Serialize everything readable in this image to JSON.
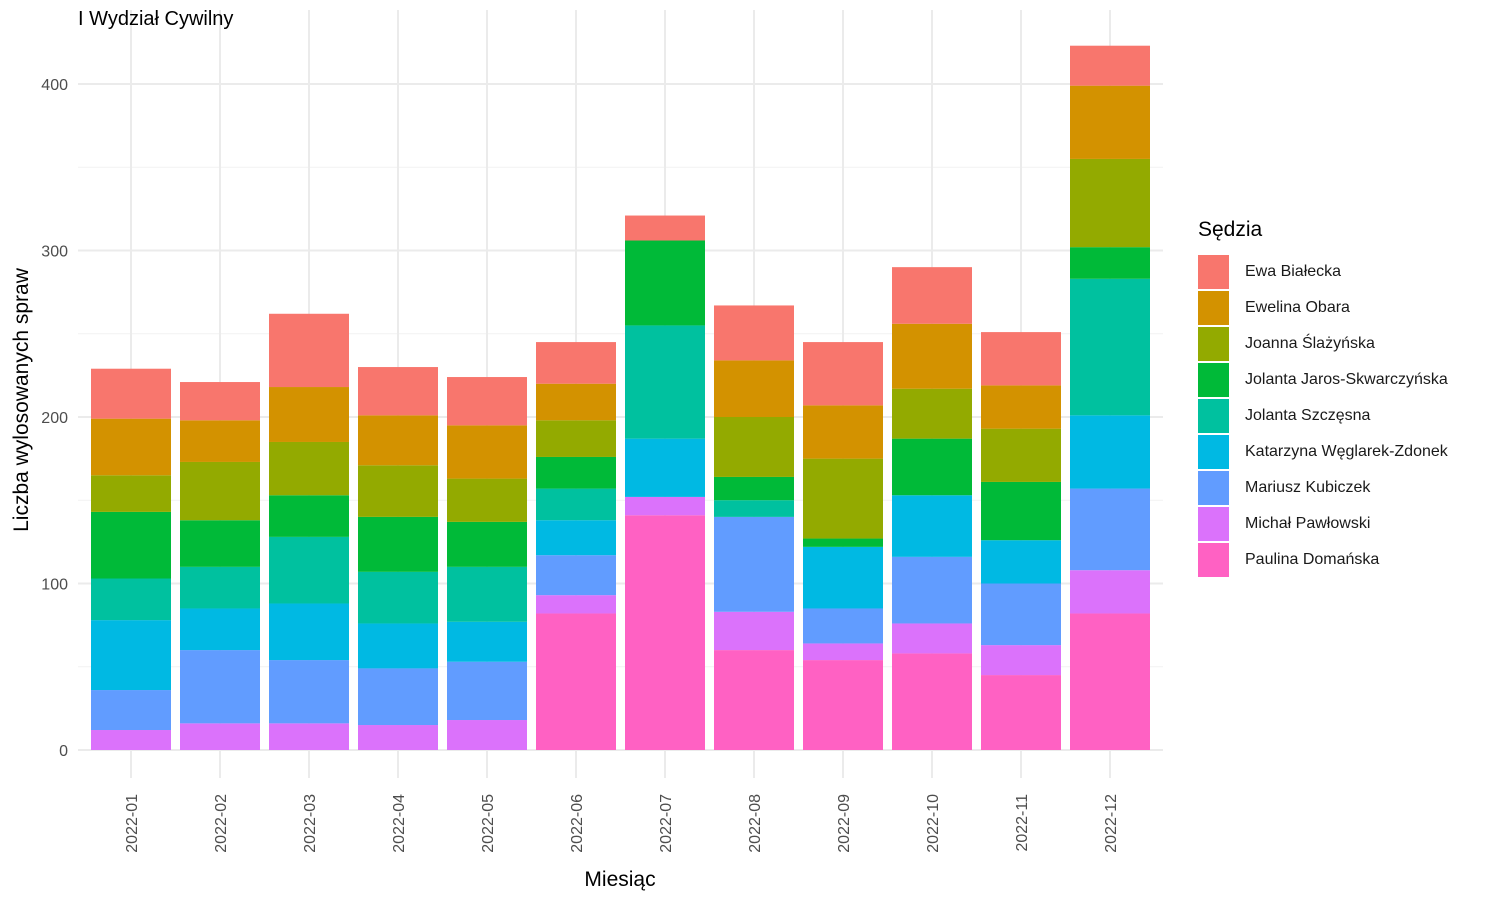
{
  "title": "I Wydział Cywilny",
  "chart_data": {
    "type": "bar",
    "stacked": true,
    "title": "I Wydział Cywilny",
    "xlabel": "Miesiąc",
    "ylabel": "Liczba wylosowanych spraw",
    "ylim": [
      0,
      430
    ],
    "yticks": [
      0,
      100,
      200,
      300,
      400
    ],
    "grid": true,
    "legend_position": "right",
    "legend_title": "Sędzia",
    "categories": [
      "2022-01",
      "2022-02",
      "2022-03",
      "2022-04",
      "2022-05",
      "2022-06",
      "2022-07",
      "2022-08",
      "2022-09",
      "2022-10",
      "2022-11",
      "2022-12"
    ],
    "series": [
      {
        "name": "Paulina Domańska",
        "color": "#FF61C3",
        "values": [
          0,
          0,
          0,
          0,
          0,
          82,
          141,
          60,
          54,
          58,
          45,
          82
        ]
      },
      {
        "name": "Michał Pawłowski",
        "color": "#DB72FB",
        "values": [
          12,
          16,
          16,
          15,
          18,
          11,
          11,
          23,
          10,
          18,
          18,
          26
        ]
      },
      {
        "name": "Mariusz Kubiczek",
        "color": "#619CFF",
        "values": [
          24,
          44,
          38,
          34,
          35,
          24,
          0,
          57,
          21,
          40,
          37,
          49
        ]
      },
      {
        "name": "Katarzyna Węglarek-Zdonek",
        "color": "#00B9E3",
        "values": [
          42,
          25,
          34,
          27,
          24,
          21,
          35,
          0,
          37,
          37,
          26,
          44
        ]
      },
      {
        "name": "Jolanta Szczęsna",
        "color": "#00C19F",
        "values": [
          25,
          25,
          40,
          31,
          33,
          19,
          68,
          10,
          0,
          0,
          0,
          82
        ]
      },
      {
        "name": "Jolanta Jaros-Skwarczyńska",
        "color": "#00BA38",
        "values": [
          40,
          28,
          25,
          33,
          27,
          19,
          51,
          14,
          5,
          34,
          35,
          19
        ]
      },
      {
        "name": "Joanna Ślażyńska",
        "color": "#93AA00",
        "values": [
          22,
          35,
          32,
          31,
          26,
          22,
          0,
          36,
          48,
          30,
          32,
          53
        ]
      },
      {
        "name": "Ewelina Obara",
        "color": "#D39200",
        "values": [
          34,
          25,
          33,
          30,
          32,
          22,
          0,
          34,
          32,
          39,
          26,
          44
        ]
      },
      {
        "name": "Ewa Białecka",
        "color": "#F8766D",
        "values": [
          30,
          23,
          44,
          29,
          29,
          25,
          15,
          33,
          38,
          34,
          32,
          24
        ]
      }
    ]
  },
  "legend": {
    "title": "Sędzia",
    "items": [
      {
        "label": "Ewa Białecka",
        "color": "#F8766D"
      },
      {
        "label": "Ewelina Obara",
        "color": "#D39200"
      },
      {
        "label": "Joanna Ślażyńska",
        "color": "#93AA00"
      },
      {
        "label": "Jolanta Jaros-Skwarczyńska",
        "color": "#00BA38"
      },
      {
        "label": "Jolanta Szczęsna",
        "color": "#00C19F"
      },
      {
        "label": "Katarzyna Węglarek-Zdonek",
        "color": "#00B9E3"
      },
      {
        "label": "Mariusz Kubiczek",
        "color": "#619CFF"
      },
      {
        "label": "Michał Pawłowski",
        "color": "#DB72FB"
      },
      {
        "label": "Paulina Domańska",
        "color": "#FF61C3"
      }
    ]
  }
}
